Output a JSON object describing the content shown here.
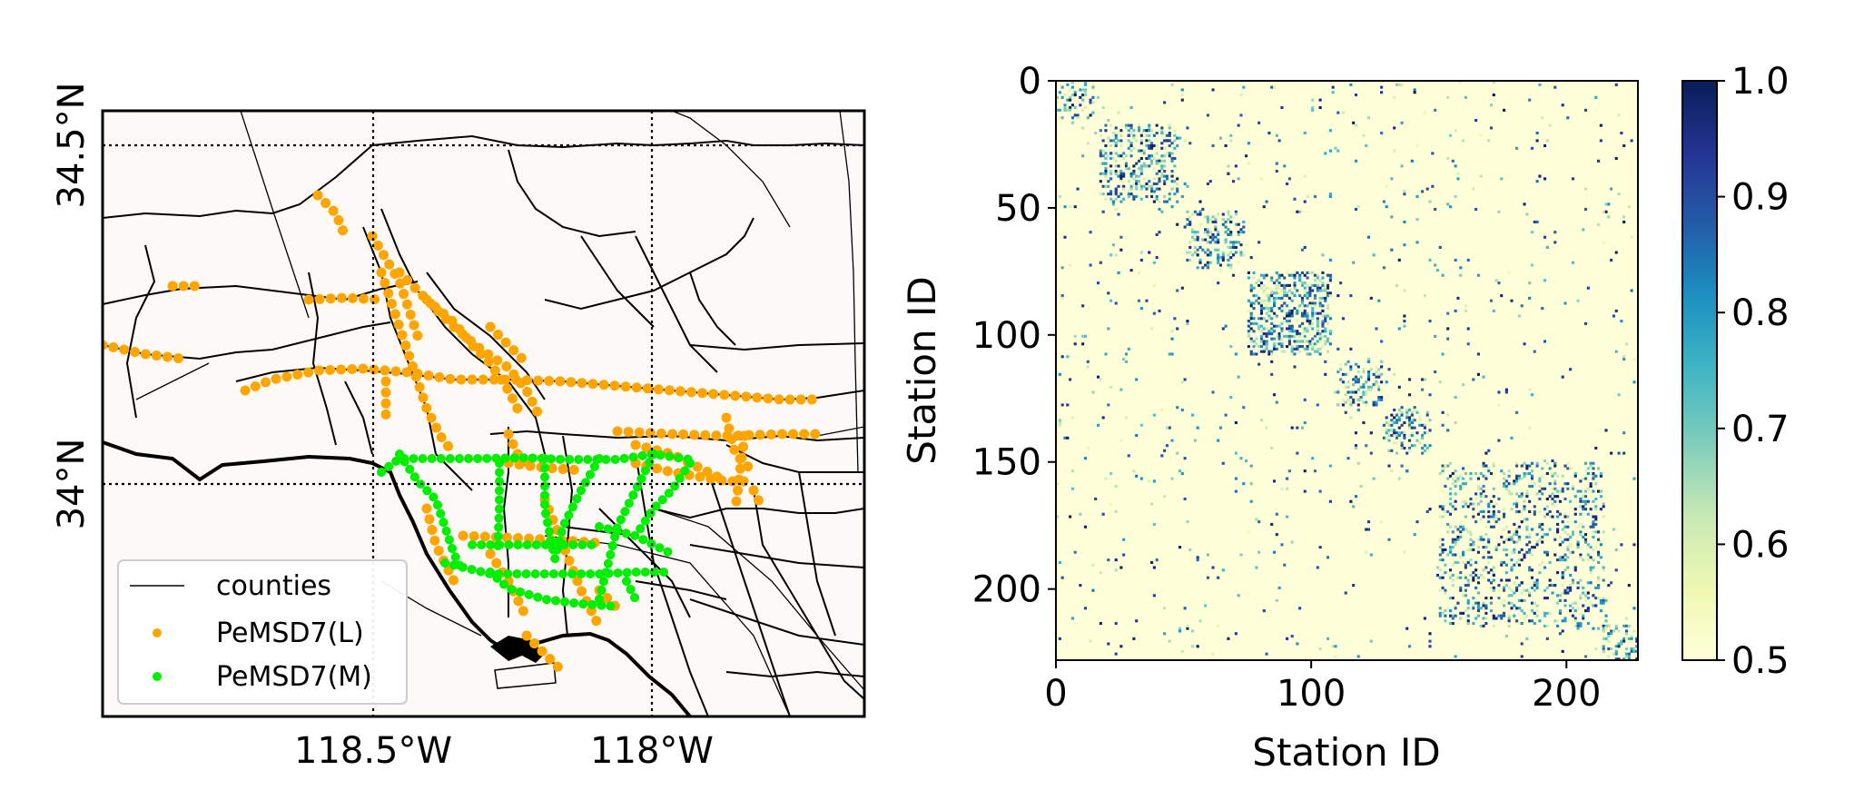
{
  "map_panel": {
    "lat_ticks": [
      "34.5°N",
      "34°N"
    ],
    "lon_ticks": [
      "118.5°W",
      "118°W"
    ],
    "legend": {
      "counties": "counties",
      "large": "PeMSD7(L)",
      "medium": "PeMSD7(M)"
    },
    "colors": {
      "large": "#ffa500",
      "medium": "#00ee00",
      "background": "#fdf9f7"
    }
  },
  "chart_data": {
    "type": "heatmap",
    "xlabel": "Station ID",
    "ylabel": "Station ID",
    "x_ticks": [
      0,
      100,
      200
    ],
    "y_ticks": [
      0,
      50,
      100,
      150,
      200
    ],
    "xlim": [
      0,
      228
    ],
    "ylim": [
      228,
      0
    ],
    "colorbar": {
      "range": [
        0.5,
        1.0
      ],
      "ticks": [
        "0.5",
        "0.6",
        "0.7",
        "0.8",
        "0.9",
        "1.0"
      ],
      "colormap": "YlGnBu"
    },
    "blocks": [
      {
        "start": 0,
        "end": 15,
        "density": 0.25
      },
      {
        "start": 17,
        "end": 48,
        "density": 0.35
      },
      {
        "start": 51,
        "end": 74,
        "density": 0.3
      },
      {
        "start": 75,
        "end": 108,
        "density": 0.45
      },
      {
        "start": 109,
        "end": 128,
        "density": 0.3
      },
      {
        "start": 128,
        "end": 147,
        "density": 0.3
      },
      {
        "start": 150,
        "end": 215,
        "density": 0.22
      },
      {
        "start": 214,
        "end": 228,
        "density": 0.4
      }
    ]
  }
}
